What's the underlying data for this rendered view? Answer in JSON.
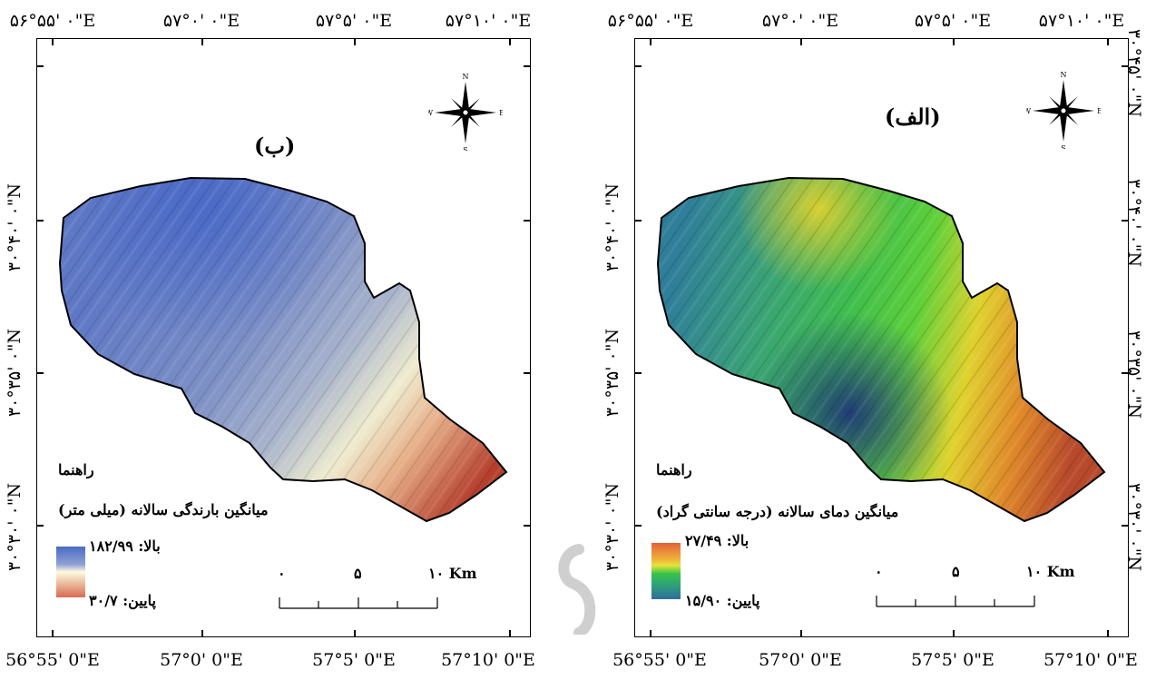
{
  "coords": {
    "top": [
      "۵۶°۵۵' ۰\"E",
      "۵۷°۰' ۰\"E",
      "۵۷°۵' ۰\"E",
      "۵۷°۱۰' ۰\"E"
    ],
    "bottom": [
      "56°55' 0\"E",
      "57°0' 0\"E",
      "57°5' 0\"E",
      "57°10' 0\"E"
    ],
    "lat": [
      "۳۰°۴۵' ۰\"N",
      "۳۰°۴۰' ۰\"N",
      "۳۰°۳۵' ۰\"N",
      "۳۰°۳۰' ۰\"N"
    ]
  },
  "compass": {
    "n": "N",
    "s": "S",
    "e": "E",
    "w": "W"
  },
  "panels": {
    "left": {
      "title": "(ب)",
      "legend_heading": "راهنما",
      "legend_title": "میانگین بارندگی سالانه (میلی متر)",
      "high_label": "بالا: ۱۸۲/۹۹",
      "low_label": "پایین: ۳۰/۷",
      "ramp_colors": [
        "#4a6cc4",
        "#fffbe0",
        "#d86a52"
      ]
    },
    "right": {
      "title": "(الف)",
      "legend_heading": "راهنما",
      "legend_title": "میانگین دمای سالانه (درجه سانتی گراد)",
      "high_label": "بالا: ۲۷/۴۹",
      "low_label": "پایین: ۱۵/۹۰",
      "ramp_colors": [
        "#e4603a",
        "#f0c53a",
        "#36c24a",
        "#2f6e9a"
      ]
    }
  },
  "scale_bar": {
    "labels": [
      "۰",
      "۵",
      "۱۰ Km"
    ]
  }
}
